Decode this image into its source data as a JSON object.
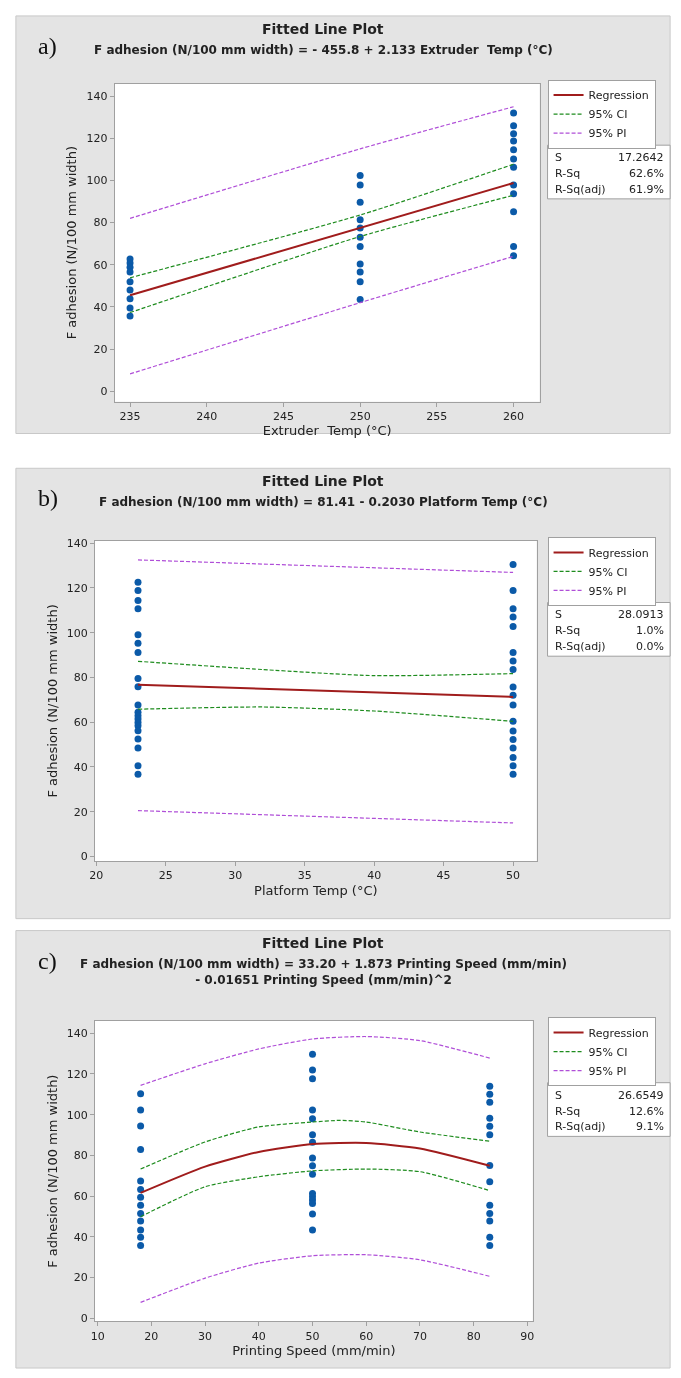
{
  "chart_data": [
    {
      "type": "scatter",
      "title": "Fitted Line Plot",
      "subtitle": "F adhesion (N/100 mm width) = - 455.8 + 2.133 Extruder  Temp (°C)",
      "xlabel": "Extruder  Temp (°C)",
      "ylabel": "F adhesion (N/100 mm width)",
      "xlim": [
        234,
        261.7
      ],
      "ylim": [
        -5,
        146
      ],
      "xticks": [
        235,
        240,
        245,
        250,
        255,
        260
      ],
      "yticks": [
        0,
        20,
        40,
        60,
        80,
        100,
        120,
        140
      ],
      "grid": false,
      "legend": "right",
      "annotations": [
        "a)",
        "S",
        "17.2642",
        "R-Sq",
        "62.6%",
        "R-Sq(adj)",
        "61.9%"
      ],
      "series": [
        {
          "marker": "circle",
          "color": "#0b5aa8",
          "x": [
            235,
            235,
            235,
            235,
            235,
            235,
            235,
            235,
            235,
            250,
            250,
            250,
            250,
            250,
            250,
            250,
            250,
            250,
            250,
            250,
            260,
            260,
            260,
            260,
            260,
            260,
            260,
            260,
            260,
            260,
            260,
            260
          ],
          "values": [
            62.7,
            60.8,
            58.8,
            56.5,
            51.9,
            48,
            43.9,
            39.5,
            35.7,
            102.4,
            97.8,
            89.6,
            81.3,
            77.4,
            73,
            68.7,
            60.4,
            56.5,
            51.9,
            43.5,
            132,
            126,
            122.2,
            118.7,
            114.6,
            110.2,
            106.3,
            97.8,
            93.7,
            85.2,
            68.7,
            64.3
          ]
        },
        {
          "type": "line",
          "name": "Regression",
          "color": "#a01c1c",
          "line_style": "solid",
          "marker": "none",
          "x": [
            235,
            260
          ],
          "values": [
            45.5,
            98.8
          ]
        },
        {
          "type": "line",
          "name": "95% CI",
          "color": "#1e8c1e",
          "line_style": "dashed",
          "marker": "none",
          "x": [
            235,
            250,
            260
          ],
          "values": [
            53.8,
            83.6,
            107.7
          ]
        },
        {
          "type": "line",
          "color": "#1e8c1e",
          "line_style": "dashed",
          "marker": "none",
          "x": [
            235,
            250,
            260
          ],
          "values": [
            37.3,
            73.4,
            93
          ]
        },
        {
          "type": "line",
          "name": "95% PI",
          "color": "#b04fd8",
          "line_style": "dashed",
          "marker": "none",
          "x": [
            235,
            250,
            260
          ],
          "values": [
            82,
            115,
            135
          ]
        },
        {
          "type": "line",
          "color": "#b04fd8",
          "line_style": "dashed",
          "marker": "none",
          "x": [
            235,
            250,
            260
          ],
          "values": [
            8.2,
            42,
            64
          ]
        }
      ]
    },
    {
      "type": "scatter",
      "title": "Fitted Line Plot",
      "subtitle": "F adhesion (N/100 mm width) = 81.41 - 0.2030 Platform Temp (°C)",
      "xlabel": "Platform Temp (°C)",
      "ylabel": "F adhesion (N/100 mm width)",
      "xlim": [
        19.9,
        51.7
      ],
      "ylim": [
        -2,
        141
      ],
      "xticks": [
        20,
        25,
        30,
        35,
        40,
        45,
        50
      ],
      "yticks": [
        0,
        20,
        40,
        60,
        80,
        100,
        120,
        140
      ],
      "grid": false,
      "legend": "right",
      "annotations": [
        "b)",
        "S",
        "28.0913",
        "R-Sq",
        "1.0%",
        "R-Sq(adj)",
        "0.0%"
      ],
      "series": [
        {
          "marker": "circle",
          "color": "#0b5aa8",
          "x": [
            23,
            23,
            23,
            23,
            23,
            23,
            23,
            23,
            23,
            23,
            23,
            23,
            23,
            23,
            23,
            23,
            23,
            23,
            23,
            23,
            50,
            50,
            50,
            50,
            50,
            50,
            50,
            50,
            50,
            50,
            50,
            50,
            50,
            50,
            50,
            50,
            50,
            50
          ],
          "values": [
            122.5,
            118.8,
            114.4,
            110.7,
            99.1,
            95.3,
            91.1,
            79.5,
            75.8,
            67.7,
            64.4,
            62.9,
            61.4,
            59.9,
            58.4,
            56.2,
            52.5,
            48.5,
            40.6,
            36.7,
            130.4,
            118.8,
            110.7,
            107,
            102.8,
            91.1,
            87.3,
            83.5,
            75.7,
            72,
            67.7,
            60.4,
            56.1,
            52.3,
            48.5,
            44.2,
            40.6,
            36.7
          ]
        },
        {
          "type": "line",
          "name": "Regression",
          "color": "#a01c1c",
          "line_style": "solid",
          "marker": "none",
          "x": [
            23,
            50
          ],
          "values": [
            76.7,
            71.3
          ]
        },
        {
          "type": "line",
          "name": "95% CI",
          "color": "#1e8c1e",
          "line_style": "dashed",
          "marker": "none",
          "x": [
            23,
            32,
            40,
            50
          ],
          "values": [
            87.2,
            83.5,
            80.8,
            81.7
          ]
        },
        {
          "type": "line",
          "color": "#1e8c1e",
          "line_style": "dashed",
          "marker": "none",
          "x": [
            23,
            32,
            40,
            50
          ],
          "values": [
            65.8,
            66.8,
            65,
            60.4
          ]
        },
        {
          "type": "line",
          "name": "95% PI",
          "color": "#b04fd8",
          "line_style": "dashed",
          "marker": "none",
          "x": [
            23,
            50
          ],
          "values": [
            132.5,
            126.9
          ]
        },
        {
          "type": "line",
          "color": "#b04fd8",
          "line_style": "dashed",
          "marker": "none",
          "x": [
            23,
            50
          ],
          "values": [
            20.5,
            15
          ]
        }
      ]
    },
    {
      "type": "scatter",
      "title": "Fitted Line Plot",
      "subtitle": "F adhesion (N/100 mm width) = 33.20 + 1.873 Printing Speed (mm/min)\n- 0.01651 Printing Speed (mm/min)^2",
      "xlabel": "Printing Speed (mm/min)",
      "ylabel": "F adhesion (N/100 mm width)",
      "xlim": [
        9.5,
        91
      ],
      "ylim": [
        -1.5,
        146
      ],
      "xticks": [
        10,
        20,
        30,
        40,
        50,
        60,
        70,
        80,
        90
      ],
      "yticks": [
        0,
        20,
        40,
        60,
        80,
        100,
        120,
        140
      ],
      "grid": false,
      "legend": "right",
      "annotations": [
        "c)",
        "S",
        "26.6549",
        "R-Sq",
        "12.6%",
        "R-Sq(adj)",
        "9.1%"
      ],
      "series": [
        {
          "marker": "circle",
          "color": "#0b5aa8",
          "x": [
            18,
            18,
            18,
            18,
            18,
            18,
            18,
            18,
            18,
            18,
            18,
            18,
            18,
            50,
            50,
            50,
            50,
            50,
            50,
            50,
            50,
            50,
            50,
            50,
            50,
            50,
            50,
            50,
            50,
            83,
            83,
            83,
            83,
            83,
            83,
            83,
            83,
            83,
            83,
            83,
            83,
            83
          ],
          "values": [
            110.3,
            102.3,
            94.5,
            82.9,
            67.4,
            63.3,
            59.4,
            55.5,
            51.5,
            47.8,
            43.4,
            39.8,
            35.7,
            129.7,
            121.9,
            117.6,
            102.3,
            98,
            90.2,
            86.5,
            78.7,
            74.9,
            70.8,
            61.3,
            59.7,
            58.1,
            56.4,
            51.2,
            43.4,
            114,
            110.1,
            106.1,
            98.2,
            94.3,
            90.2,
            75,
            67.1,
            55.5,
            51.5,
            47.8,
            39.8,
            35.7
          ]
        },
        {
          "type": "line",
          "name": "Regression",
          "color": "#a01c1c",
          "line_style": "solid",
          "marker": "none",
          "x": [
            18,
            30,
            40,
            50,
            60,
            70,
            83
          ],
          "values": [
            61.6,
            74.5,
            81.7,
            85.6,
            86.1,
            83.4,
            74.9
          ]
        },
        {
          "type": "line",
          "name": "95% CI",
          "color": "#1e8c1e",
          "line_style": "dashed",
          "marker": "none",
          "x": [
            18,
            30,
            40,
            50,
            55,
            60,
            70,
            83
          ],
          "values": [
            73.3,
            86.6,
            94,
            96.4,
            97.2,
            96.4,
            91.5,
            87
          ]
        },
        {
          "type": "line",
          "color": "#1e8c1e",
          "line_style": "dashed",
          "marker": "none",
          "x": [
            18,
            30,
            40,
            50,
            60,
            70,
            83
          ],
          "values": [
            49.9,
            64.6,
            69.5,
            72.4,
            73.3,
            72,
            62.7
          ]
        },
        {
          "type": "line",
          "name": "95% PI",
          "color": "#b04fd8",
          "line_style": "dashed",
          "marker": "none",
          "x": [
            18,
            30,
            40,
            50,
            60,
            70,
            83
          ],
          "values": [
            114.4,
            125,
            132.3,
            137.2,
            138.4,
            136.4,
            127.8
          ]
        },
        {
          "type": "line",
          "color": "#b04fd8",
          "line_style": "dashed",
          "marker": "none",
          "x": [
            18,
            30,
            40,
            50,
            60,
            70,
            83
          ],
          "values": [
            7.8,
            19.7,
            27.1,
            30.7,
            31.2,
            28.7,
            20.6
          ]
        }
      ]
    }
  ]
}
